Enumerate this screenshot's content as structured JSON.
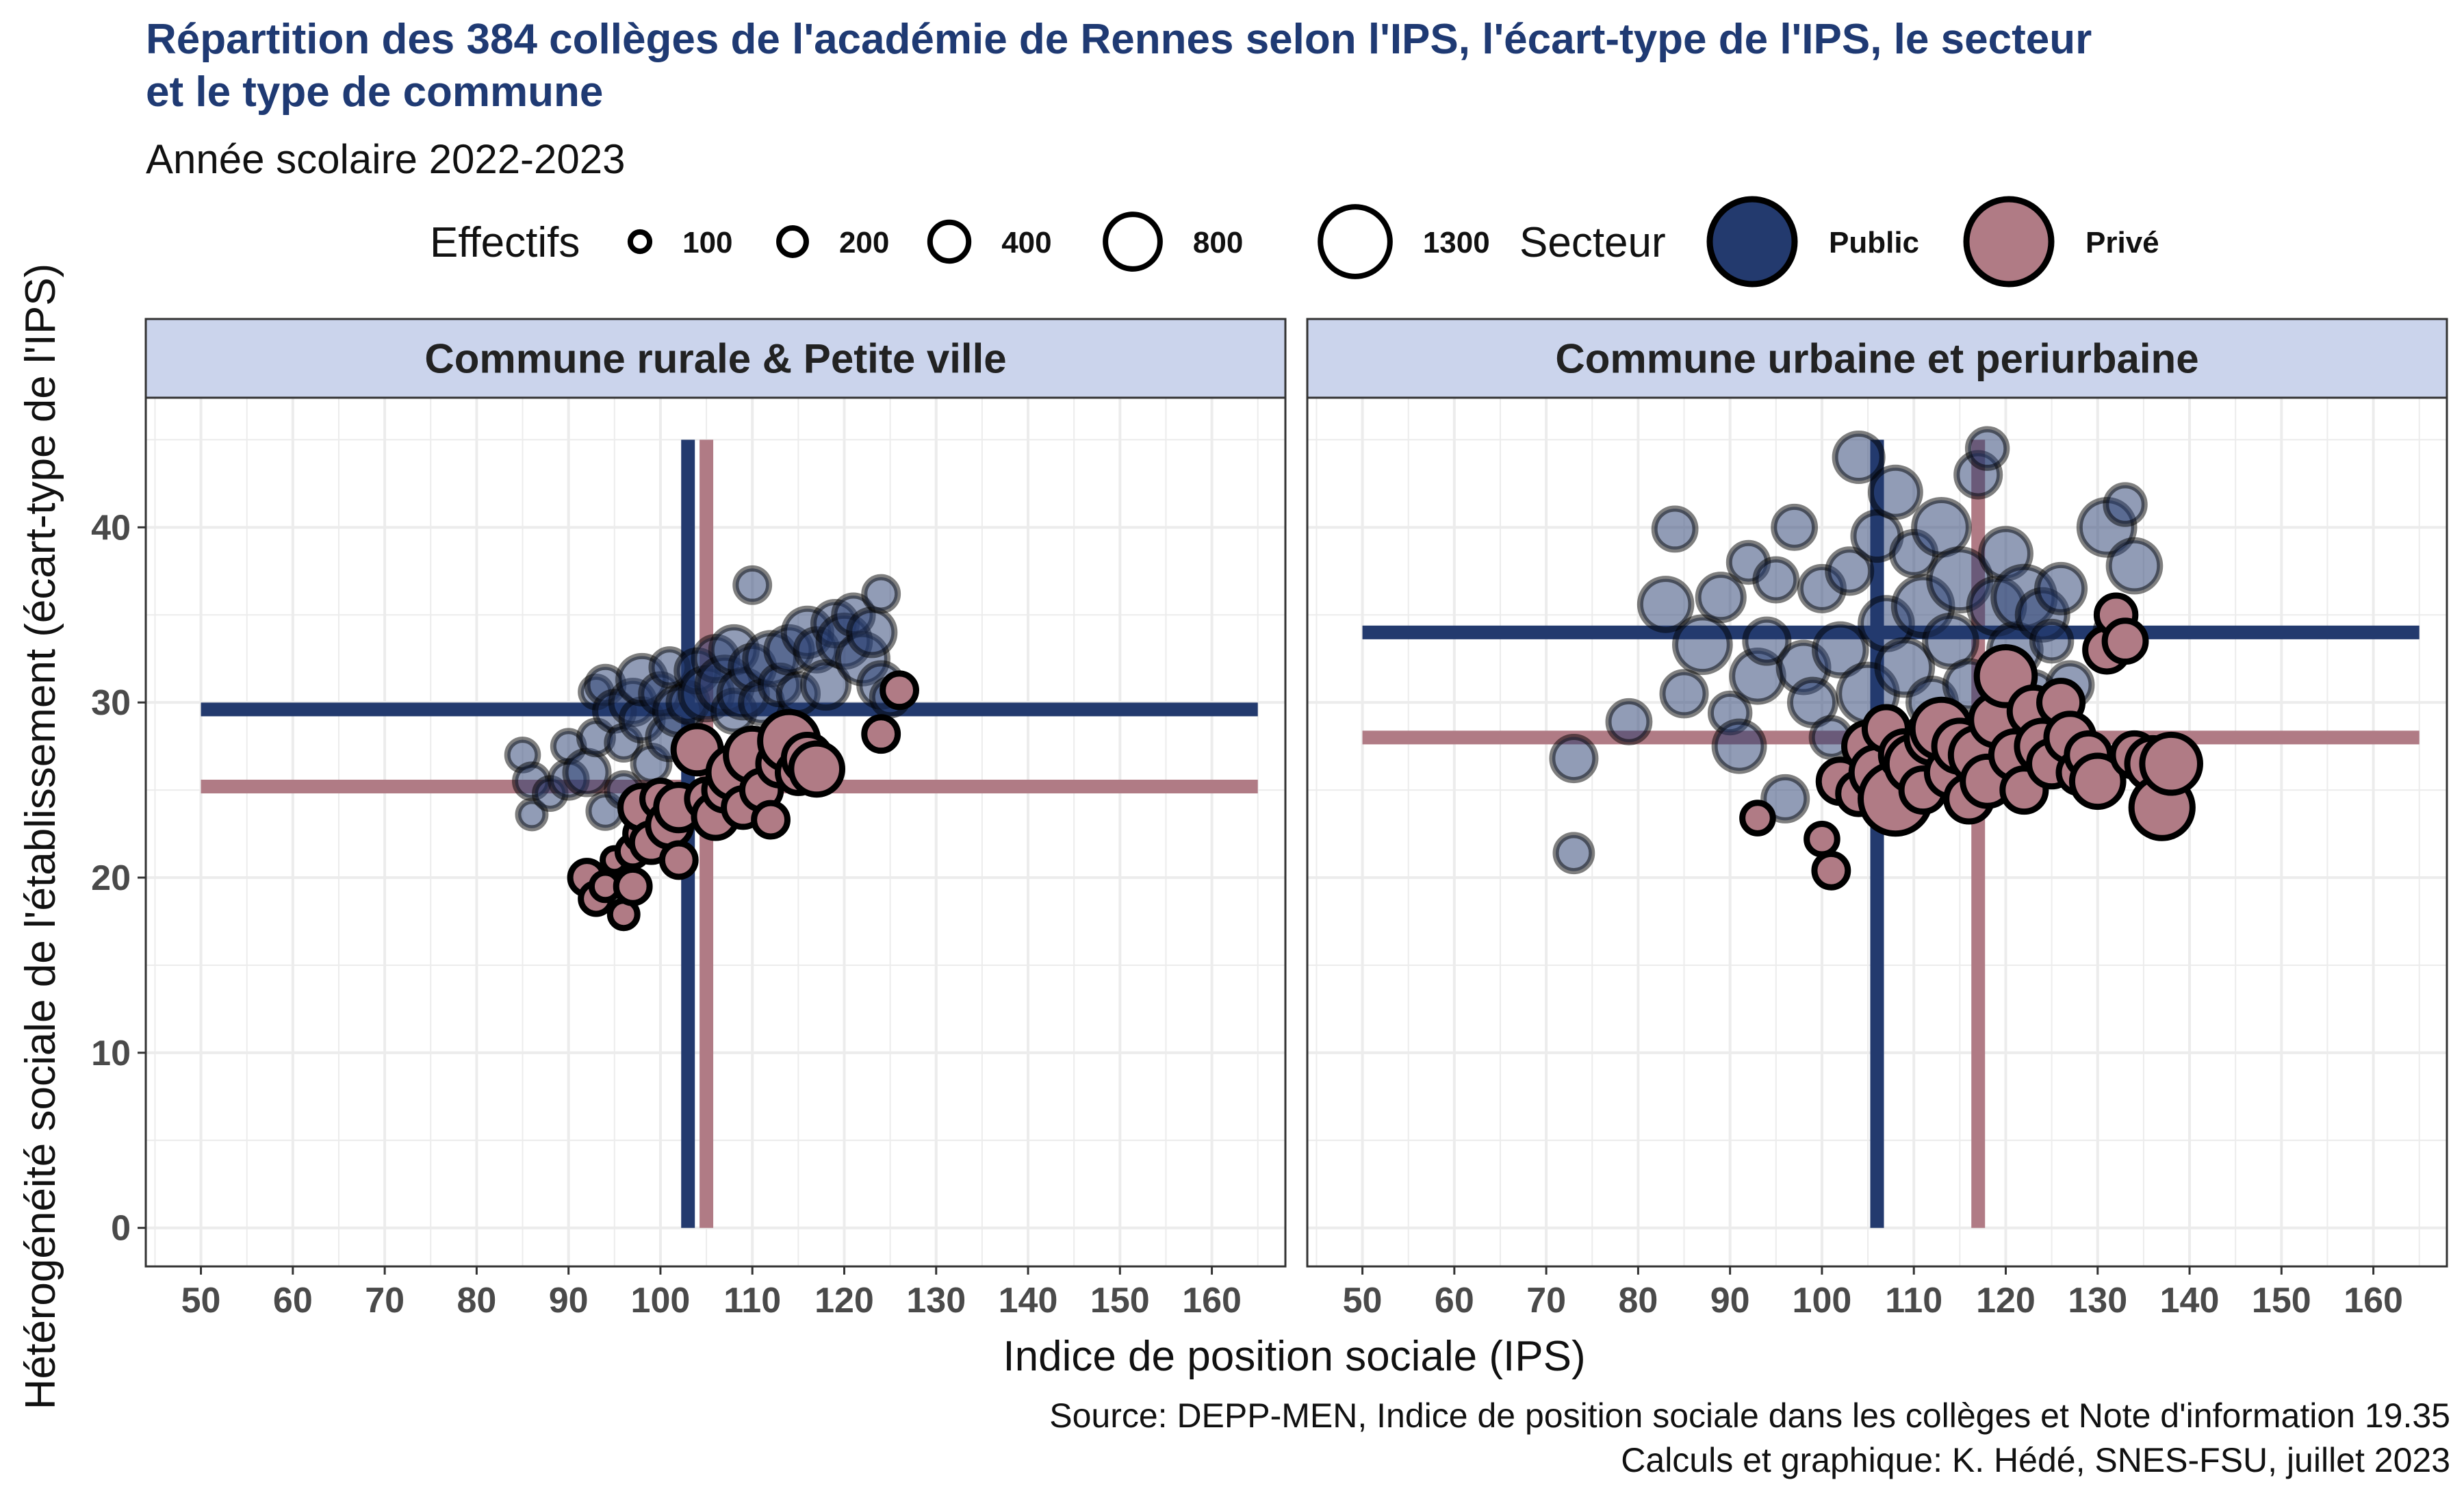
{
  "chart_data": {
    "type": "scatter",
    "title_line1": "Répartition des 384 collèges de l'académie de Rennes selon l'IPS, l'écart-type de l'IPS, le secteur",
    "title_line2": "et le type de commune",
    "subtitle": "Année scolaire 2022-2023",
    "xlabel": "Indice de position sociale (IPS)",
    "ylabel": "Hétérogénéité sociale de l'établissement (écart-type de l'IPS)",
    "caption_line1": "Source: DEPP-MEN, Indice de position sociale dans les collèges et Note d'information 19.35",
    "caption_line2": "Calculs et graphique: K. Hédé, SNES-FSU, juillet 2023",
    "xlim": [
      44,
      168
    ],
    "ylim": [
      -2.2,
      47.4
    ],
    "x_ticks": [
      50,
      60,
      70,
      80,
      90,
      100,
      110,
      120,
      130,
      140,
      150,
      160
    ],
    "y_ticks": [
      0,
      10,
      20,
      30,
      40
    ],
    "grid": true,
    "legend_position": "top",
    "size_legend": {
      "title": "Effectifs",
      "entries": [
        {
          "label": "100",
          "value": 100
        },
        {
          "label": "200",
          "value": 200
        },
        {
          "label": "400",
          "value": 400
        },
        {
          "label": "800",
          "value": 800
        },
        {
          "label": "1300",
          "value": 1300
        }
      ]
    },
    "color_legend": {
      "title": "Secteur",
      "entries": [
        {
          "label": "Public",
          "color": "#233a6e"
        },
        {
          "label": "Privé",
          "color": "#b07b85"
        }
      ]
    },
    "colors": {
      "public": "#233a6e",
      "prive": "#b07b85",
      "strip_bg": "#cbd4ec",
      "grid": "#ececec"
    },
    "panels": [
      {
        "strip": "Commune rurale & Petite ville",
        "mean_lines": {
          "public": {
            "ips": 103,
            "sd": 29.6
          },
          "prive": {
            "ips": 105,
            "sd": 25.2
          }
        },
        "series": [
          {
            "name": "Public",
            "points": [
              [
                85,
                27.0,
                250
              ],
              [
                86,
                25.5,
                300
              ],
              [
                86,
                23.6,
                200
              ],
              [
                88,
                24.8,
                250
              ],
              [
                90,
                25.6,
                350
              ],
              [
                90,
                27.5,
                250
              ],
              [
                92,
                26.0,
                500
              ],
              [
                93,
                28.0,
                300
              ],
              [
                93,
                30.6,
                250
              ],
              [
                94,
                31.0,
                350
              ],
              [
                94,
                23.8,
                300
              ],
              [
                95,
                29.5,
                400
              ],
              [
                96,
                27.7,
                300
              ],
              [
                96,
                25.0,
                300
              ],
              [
                97,
                30.0,
                500
              ],
              [
                98,
                29.0,
                450
              ],
              [
                98,
                31.3,
                600
              ],
              [
                99,
                26.5,
                350
              ],
              [
                100,
                30.5,
                400
              ],
              [
                101,
                28.0,
                500
              ],
              [
                101,
                32.0,
                350
              ],
              [
                102,
                29.5,
                600
              ],
              [
                103,
                30.0,
                400
              ],
              [
                104,
                31.8,
                450
              ],
              [
                105,
                30.5,
                700
              ],
              [
                106,
                32.5,
                500
              ],
              [
                107,
                31.0,
                800
              ],
              [
                108,
                33.0,
                550
              ],
              [
                108,
                29.5,
                450
              ],
              [
                109,
                30.5,
                600
              ],
              [
                110,
                36.7,
                300
              ],
              [
                110,
                32.0,
                500
              ],
              [
                111,
                30.0,
                450
              ],
              [
                112,
                32.5,
                700
              ],
              [
                113,
                31.0,
                400
              ],
              [
                114,
                33.0,
                550
              ],
              [
                115,
                30.5,
                400
              ],
              [
                116,
                34.0,
                600
              ],
              [
                117,
                33.0,
                450
              ],
              [
                118,
                31.0,
                550
              ],
              [
                119,
                34.5,
                500
              ],
              [
                120,
                33.5,
                700
              ],
              [
                121,
                35.0,
                400
              ],
              [
                122,
                32.5,
                650
              ],
              [
                123,
                34.0,
                550
              ],
              [
                124,
                36.2,
                300
              ],
              [
                124,
                31.0,
                500
              ],
              [
                125,
                30.3,
                350
              ]
            ]
          },
          {
            "name": "Privé",
            "points": [
              [
                92,
                20.0,
                300
              ],
              [
                93,
                18.8,
                250
              ],
              [
                94,
                19.5,
                200
              ],
              [
                95,
                21.0,
                150
              ],
              [
                96,
                17.9,
                200
              ],
              [
                97,
                21.5,
                250
              ],
              [
                97,
                19.5,
                300
              ],
              [
                98,
                22.5,
                300
              ],
              [
                98,
                24.0,
                500
              ],
              [
                99,
                22.0,
                400
              ],
              [
                100,
                24.5,
                350
              ],
              [
                101,
                23.0,
                500
              ],
              [
                102,
                21.0,
                300
              ],
              [
                102,
                24.0,
                550
              ],
              [
                104,
                27.3,
                600
              ],
              [
                105,
                24.5,
                400
              ],
              [
                106,
                23.5,
                500
              ],
              [
                107,
                25.0,
                450
              ],
              [
                108,
                26.0,
                700
              ],
              [
                109,
                24.0,
                400
              ],
              [
                110,
                27.0,
                750
              ],
              [
                111,
                25.0,
                400
              ],
              [
                112,
                23.3,
                300
              ],
              [
                113,
                26.5,
                500
              ],
              [
                114,
                27.8,
                900
              ],
              [
                115,
                26.0,
                450
              ],
              [
                116,
                26.8,
                600
              ],
              [
                117,
                26.2,
                700
              ],
              [
                124,
                28.2,
                300
              ],
              [
                126,
                30.7,
                300
              ]
            ]
          }
        ]
      },
      {
        "strip": "Commune urbaine et periurbaine",
        "mean_lines": {
          "public": {
            "ips": 106,
            "sd": 34.0
          },
          "prive": {
            "ips": 117,
            "sd": 28.0
          }
        },
        "series": [
          {
            "name": "Public",
            "points": [
              [
                73,
                21.4,
                350
              ],
              [
                73,
                26.8,
                500
              ],
              [
                79,
                28.9,
                450
              ],
              [
                83,
                35.6,
                700
              ],
              [
                84,
                39.9,
                450
              ],
              [
                85,
                30.5,
                500
              ],
              [
                87,
                33.3,
                800
              ],
              [
                89,
                36.0,
                550
              ],
              [
                90,
                29.4,
                400
              ],
              [
                91,
                27.5,
                650
              ],
              [
                92,
                38.0,
                400
              ],
              [
                93,
                31.5,
                700
              ],
              [
                94,
                33.5,
                500
              ],
              [
                95,
                37.0,
                450
              ],
              [
                96,
                24.5,
                500
              ],
              [
                97,
                40.0,
                450
              ],
              [
                98,
                32.0,
                650
              ],
              [
                99,
                30.0,
                550
              ],
              [
                100,
                36.5,
                500
              ],
              [
                101,
                28.0,
                400
              ],
              [
                102,
                33.0,
                700
              ],
              [
                103,
                37.5,
                500
              ],
              [
                104,
                44.0,
                600
              ],
              [
                105,
                30.5,
                900
              ],
              [
                106,
                39.5,
                600
              ],
              [
                107,
                34.5,
                700
              ],
              [
                108,
                42.0,
                650
              ],
              [
                109,
                32.0,
                800
              ],
              [
                110,
                38.5,
                500
              ],
              [
                111,
                35.5,
                900
              ],
              [
                112,
                30.0,
                600
              ],
              [
                113,
                40.0,
                800
              ],
              [
                114,
                33.5,
                700
              ],
              [
                115,
                37.0,
                1000
              ],
              [
                116,
                31.0,
                600
              ],
              [
                117,
                43.0,
                500
              ],
              [
                118,
                44.5,
                400
              ],
              [
                119,
                35.5,
                800
              ],
              [
                120,
                38.5,
                650
              ],
              [
                121,
                33.0,
                700
              ],
              [
                122,
                36.0,
                1000
              ],
              [
                123,
                30.5,
                500
              ],
              [
                124,
                35.0,
                650
              ],
              [
                125,
                33.5,
                400
              ],
              [
                126,
                36.5,
                600
              ],
              [
                127,
                31.0,
                500
              ],
              [
                131,
                40.0,
                800
              ],
              [
                132,
                34.0,
                450
              ],
              [
                133,
                41.3,
                400
              ],
              [
                134,
                37.8,
                700
              ]
            ]
          },
          {
            "name": "Privé",
            "points": [
              [
                93,
                23.4,
                250
              ],
              [
                100,
                22.2,
                250
              ],
              [
                101,
                20.4,
                300
              ],
              [
                102,
                25.5,
                500
              ],
              [
                104,
                24.8,
                450
              ],
              [
                105,
                27.5,
                600
              ],
              [
                106,
                26.0,
                700
              ],
              [
                107,
                28.5,
                500
              ],
              [
                108,
                24.5,
                1300
              ],
              [
                109,
                27.0,
                600
              ],
              [
                110,
                26.5,
                800
              ],
              [
                111,
                25.0,
                500
              ],
              [
                112,
                28.0,
                700
              ],
              [
                113,
                28.5,
                900
              ],
              [
                114,
                26.0,
                600
              ],
              [
                115,
                27.5,
                700
              ],
              [
                116,
                24.5,
                550
              ],
              [
                117,
                27.0,
                800
              ],
              [
                118,
                25.5,
                650
              ],
              [
                119,
                29.0,
                700
              ],
              [
                120,
                31.5,
                900
              ],
              [
                121,
                27.0,
                600
              ],
              [
                122,
                25.0,
                500
              ],
              [
                123,
                29.5,
                600
              ],
              [
                124,
                27.5,
                700
              ],
              [
                125,
                26.5,
                550
              ],
              [
                126,
                30.0,
                500
              ],
              [
                127,
                28.0,
                600
              ],
              [
                128,
                26.0,
                450
              ],
              [
                129,
                27.0,
                500
              ],
              [
                130,
                25.5,
                700
              ],
              [
                131,
                33.0,
                500
              ],
              [
                132,
                35.0,
                400
              ],
              [
                133,
                33.5,
                450
              ],
              [
                134,
                27.0,
                500
              ],
              [
                136,
                26.5,
                700
              ],
              [
                137,
                24.0,
                1000
              ],
              [
                138,
                26.5,
                900
              ]
            ]
          }
        ]
      }
    ]
  }
}
